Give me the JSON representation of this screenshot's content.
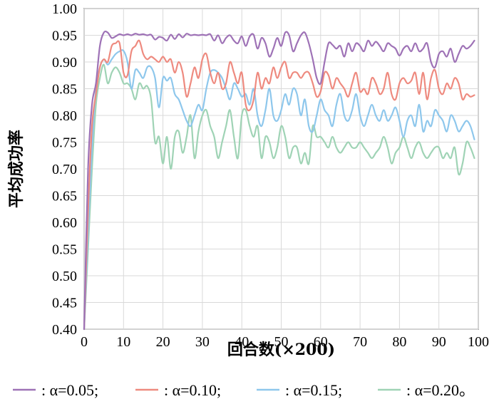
{
  "chart_data": {
    "type": "line",
    "title": "",
    "xlabel": "回合数(×200)",
    "ylabel": "平均成功率",
    "xlim": [
      0,
      100
    ],
    "ylim": [
      0.4,
      1.0
    ],
    "xticks": [
      0,
      10,
      20,
      30,
      40,
      50,
      60,
      70,
      80,
      90,
      100
    ],
    "yticks": [
      0.4,
      0.45,
      0.5,
      0.55,
      0.6,
      0.65,
      0.7,
      0.75,
      0.8,
      0.85,
      0.9,
      0.95,
      1.0
    ],
    "grid": true,
    "legend_position": "bottom",
    "legend_prefix": ":",
    "legend_end": "。",
    "legend_sep": ";",
    "series": [
      {
        "name": "α=0.05",
        "color": "#9e72b6",
        "x": [
          0,
          1,
          2,
          3,
          4,
          5,
          6,
          7,
          8,
          9,
          10,
          11,
          12,
          13,
          14,
          15,
          16,
          17,
          18,
          19,
          20,
          21,
          22,
          23,
          24,
          25,
          26,
          27,
          28,
          29,
          30,
          31,
          32,
          33,
          34,
          35,
          36,
          37,
          38,
          39,
          40,
          41,
          42,
          43,
          44,
          45,
          46,
          47,
          48,
          49,
          50,
          51,
          52,
          53,
          54,
          55,
          56,
          57,
          58,
          59,
          60,
          61,
          62,
          63,
          64,
          65,
          66,
          67,
          68,
          69,
          70,
          71,
          72,
          73,
          74,
          75,
          76,
          77,
          78,
          79,
          80,
          81,
          82,
          83,
          84,
          85,
          86,
          87,
          88,
          89,
          90,
          91,
          92,
          93,
          94,
          95,
          96,
          97,
          98,
          99
        ],
        "values": [
          0.4,
          0.7,
          0.82,
          0.86,
          0.93,
          0.955,
          0.955,
          0.945,
          0.948,
          0.952,
          0.95,
          0.952,
          0.95,
          0.953,
          0.951,
          0.952,
          0.95,
          0.951,
          0.942,
          0.947,
          0.945,
          0.94,
          0.951,
          0.943,
          0.952,
          0.946,
          0.953,
          0.95,
          0.951,
          0.95,
          0.951,
          0.95,
          0.952,
          0.94,
          0.95,
          0.935,
          0.945,
          0.95,
          0.94,
          0.935,
          0.948,
          0.93,
          0.948,
          0.951,
          0.925,
          0.945,
          0.935,
          0.91,
          0.925,
          0.945,
          0.93,
          0.955,
          0.95,
          0.92,
          0.935,
          0.95,
          0.955,
          0.935,
          0.905,
          0.87,
          0.86,
          0.9,
          0.935,
          0.932,
          0.925,
          0.93,
          0.91,
          0.935,
          0.92,
          0.935,
          0.93,
          0.92,
          0.94,
          0.93,
          0.938,
          0.93,
          0.92,
          0.935,
          0.93,
          0.925,
          0.912,
          0.925,
          0.93,
          0.92,
          0.935,
          0.92,
          0.925,
          0.935,
          0.9,
          0.89,
          0.915,
          0.92,
          0.91,
          0.925,
          0.9,
          0.915,
          0.93,
          0.925,
          0.93,
          0.94
        ]
      },
      {
        "name": "α=0.10",
        "color": "#ee8a7f",
        "x": [
          0,
          1,
          2,
          3,
          4,
          5,
          6,
          7,
          8,
          9,
          10,
          11,
          12,
          13,
          14,
          15,
          16,
          17,
          18,
          19,
          20,
          21,
          22,
          23,
          24,
          25,
          26,
          27,
          28,
          29,
          30,
          31,
          32,
          33,
          34,
          35,
          36,
          37,
          38,
          39,
          40,
          41,
          42,
          43,
          44,
          45,
          46,
          47,
          48,
          49,
          50,
          51,
          52,
          53,
          54,
          55,
          56,
          57,
          58,
          59,
          60,
          61,
          62,
          63,
          64,
          65,
          66,
          67,
          68,
          69,
          70,
          71,
          72,
          73,
          74,
          75,
          76,
          77,
          78,
          79,
          80,
          81,
          82,
          83,
          84,
          85,
          86,
          87,
          88,
          89,
          90,
          91,
          92,
          93,
          94,
          95,
          96,
          97,
          98,
          99
        ],
        "values": [
          0.4,
          0.62,
          0.78,
          0.84,
          0.89,
          0.905,
          0.9,
          0.93,
          0.935,
          0.935,
          0.88,
          0.875,
          0.92,
          0.93,
          0.94,
          0.915,
          0.905,
          0.91,
          0.905,
          0.9,
          0.91,
          0.9,
          0.905,
          0.88,
          0.9,
          0.88,
          0.835,
          0.86,
          0.89,
          0.87,
          0.905,
          0.915,
          0.88,
          0.86,
          0.88,
          0.85,
          0.86,
          0.9,
          0.88,
          0.86,
          0.88,
          0.82,
          0.81,
          0.83,
          0.88,
          0.85,
          0.87,
          0.86,
          0.89,
          0.87,
          0.89,
          0.9,
          0.87,
          0.88,
          0.88,
          0.87,
          0.88,
          0.88,
          0.86,
          0.835,
          0.845,
          0.88,
          0.875,
          0.85,
          0.87,
          0.86,
          0.85,
          0.835,
          0.86,
          0.88,
          0.845,
          0.85,
          0.84,
          0.87,
          0.86,
          0.84,
          0.85,
          0.88,
          0.84,
          0.83,
          0.86,
          0.87,
          0.86,
          0.865,
          0.88,
          0.84,
          0.88,
          0.83,
          0.87,
          0.885,
          0.85,
          0.84,
          0.86,
          0.85,
          0.87,
          0.86,
          0.83,
          0.84,
          0.835,
          0.838
        ]
      },
      {
        "name": "α=0.15",
        "color": "#8ec7ec",
        "x": [
          0,
          1,
          2,
          3,
          4,
          5,
          6,
          7,
          8,
          9,
          10,
          11,
          12,
          13,
          14,
          15,
          16,
          17,
          18,
          19,
          20,
          21,
          22,
          23,
          24,
          25,
          26,
          27,
          28,
          29,
          30,
          31,
          32,
          33,
          34,
          35,
          36,
          37,
          38,
          39,
          40,
          41,
          42,
          43,
          44,
          45,
          46,
          47,
          48,
          49,
          50,
          51,
          52,
          53,
          54,
          55,
          56,
          57,
          58,
          59,
          60,
          61,
          62,
          63,
          64,
          65,
          66,
          67,
          68,
          69,
          70,
          71,
          72,
          73,
          74,
          75,
          76,
          77,
          78,
          79,
          80,
          81,
          82,
          83,
          84,
          85,
          86,
          87,
          88,
          89,
          90,
          91,
          92,
          93,
          94,
          95,
          96,
          97,
          98,
          99
        ],
        "values": [
          0.4,
          0.58,
          0.74,
          0.85,
          0.89,
          0.905,
          0.895,
          0.905,
          0.915,
          0.92,
          0.921,
          0.9,
          0.85,
          0.885,
          0.88,
          0.87,
          0.89,
          0.89,
          0.87,
          0.815,
          0.87,
          0.865,
          0.87,
          0.84,
          0.83,
          0.81,
          0.79,
          0.78,
          0.8,
          0.82,
          0.81,
          0.85,
          0.88,
          0.885,
          0.88,
          0.87,
          0.85,
          0.83,
          0.86,
          0.85,
          0.835,
          0.84,
          0.82,
          0.85,
          0.8,
          0.78,
          0.81,
          0.85,
          0.8,
          0.79,
          0.81,
          0.84,
          0.82,
          0.85,
          0.84,
          0.8,
          0.83,
          0.78,
          0.77,
          0.8,
          0.83,
          0.81,
          0.8,
          0.78,
          0.82,
          0.84,
          0.8,
          0.79,
          0.81,
          0.84,
          0.8,
          0.78,
          0.8,
          0.82,
          0.8,
          0.79,
          0.81,
          0.79,
          0.8,
          0.815,
          0.79,
          0.76,
          0.79,
          0.8,
          0.78,
          0.82,
          0.77,
          0.79,
          0.78,
          0.81,
          0.8,
          0.79,
          0.77,
          0.8,
          0.79,
          0.77,
          0.78,
          0.79,
          0.78,
          0.755
        ]
      },
      {
        "name": "α=0.20",
        "color": "#9fd3b5",
        "x": [
          0,
          1,
          2,
          3,
          4,
          5,
          6,
          7,
          8,
          9,
          10,
          11,
          12,
          13,
          14,
          15,
          16,
          17,
          18,
          19,
          20,
          21,
          22,
          23,
          24,
          25,
          26,
          27,
          28,
          29,
          30,
          31,
          32,
          33,
          34,
          35,
          36,
          37,
          38,
          39,
          40,
          41,
          42,
          43,
          44,
          45,
          46,
          47,
          48,
          49,
          50,
          51,
          52,
          53,
          54,
          55,
          56,
          57,
          58,
          59,
          60,
          61,
          62,
          63,
          64,
          65,
          66,
          67,
          68,
          69,
          70,
          71,
          72,
          73,
          74,
          75,
          76,
          77,
          78,
          79,
          80,
          81,
          82,
          83,
          84,
          85,
          86,
          87,
          88,
          89,
          90,
          91,
          92,
          93,
          94,
          95,
          96,
          97,
          98,
          99
        ],
        "values": [
          0.4,
          0.55,
          0.7,
          0.82,
          0.87,
          0.895,
          0.86,
          0.88,
          0.89,
          0.88,
          0.86,
          0.86,
          0.85,
          0.83,
          0.86,
          0.85,
          0.855,
          0.83,
          0.75,
          0.76,
          0.71,
          0.76,
          0.7,
          0.76,
          0.77,
          0.73,
          0.76,
          0.8,
          0.72,
          0.77,
          0.8,
          0.81,
          0.78,
          0.76,
          0.72,
          0.75,
          0.78,
          0.81,
          0.76,
          0.72,
          0.8,
          0.81,
          0.78,
          0.76,
          0.78,
          0.72,
          0.76,
          0.75,
          0.72,
          0.74,
          0.78,
          0.76,
          0.72,
          0.74,
          0.74,
          0.71,
          0.73,
          0.71,
          0.78,
          0.76,
          0.76,
          0.75,
          0.74,
          0.76,
          0.74,
          0.73,
          0.74,
          0.75,
          0.74,
          0.74,
          0.75,
          0.74,
          0.73,
          0.72,
          0.73,
          0.74,
          0.76,
          0.74,
          0.71,
          0.73,
          0.74,
          0.76,
          0.74,
          0.72,
          0.74,
          0.75,
          0.73,
          0.72,
          0.73,
          0.74,
          0.74,
          0.72,
          0.73,
          0.72,
          0.74,
          0.69,
          0.71,
          0.75,
          0.74,
          0.72
        ]
      }
    ]
  }
}
